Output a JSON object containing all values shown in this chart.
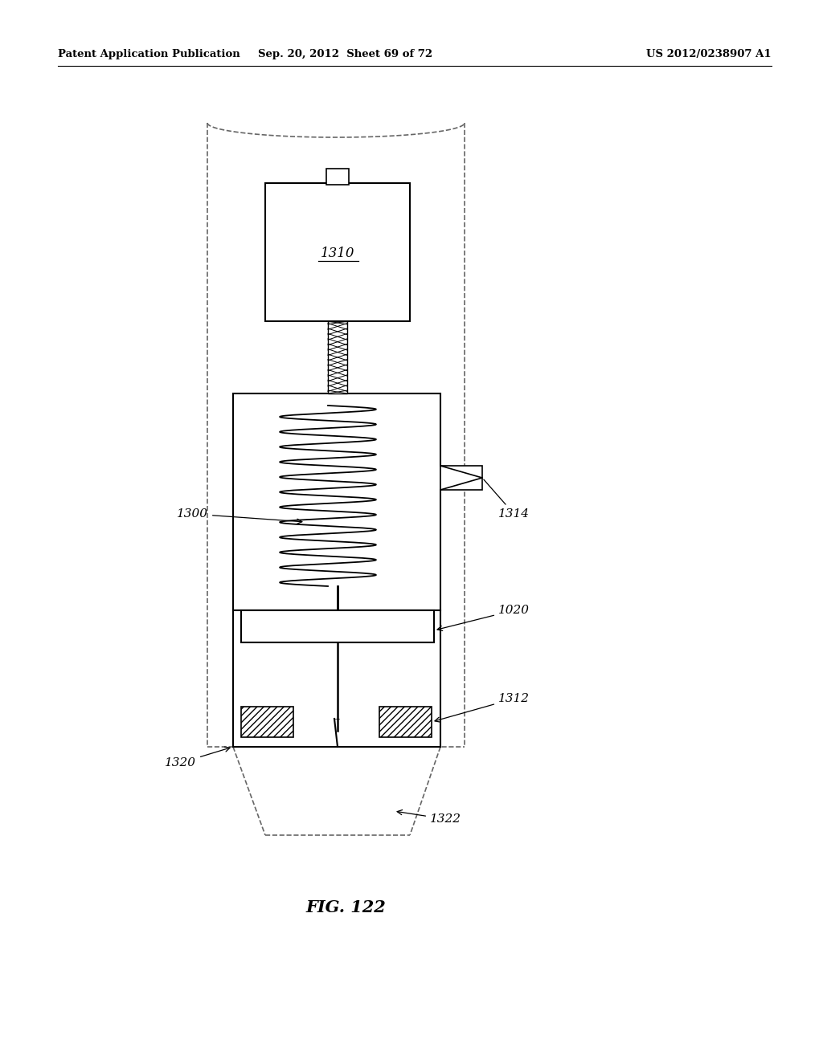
{
  "title_left": "Patent Application Publication",
  "title_center": "Sep. 20, 2012  Sheet 69 of 72",
  "title_right": "US 2012/0238907 A1",
  "fig_label": "FIG. 122",
  "bg_color": "#ffffff",
  "line_color": "#000000",
  "dashed_color": "#666666"
}
